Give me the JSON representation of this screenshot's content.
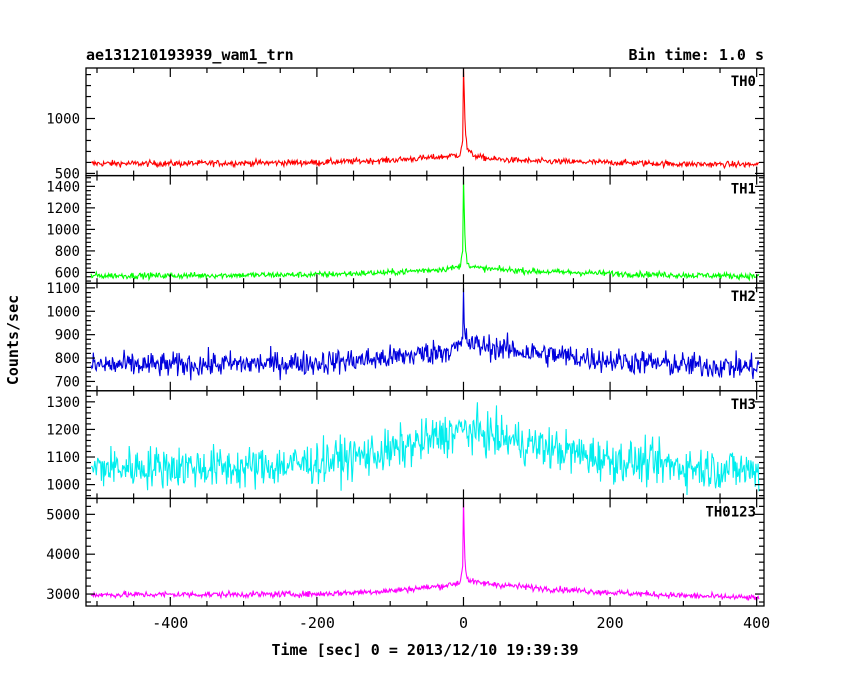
{
  "header": {
    "left": "ae131210193939_wam1_trn",
    "right": "Bin time: 1.0 s"
  },
  "chart_data": {
    "type": "line",
    "title": "ae131210193939_wam1_trn",
    "subtitle": "Bin time: 1.0 s",
    "xlabel": "Time [sec] 0 = 2013/12/10 19:39:39",
    "ylabel": "Counts/sec",
    "xlim": [
      -515,
      410
    ],
    "x_ticks": [
      -400,
      -200,
      0,
      200,
      400
    ],
    "grid": false,
    "panels": [
      {
        "name": "TH0",
        "color": "#ff0000",
        "ylim": [
          480,
          1460
        ],
        "y_ticks": [
          500,
          1000
        ],
        "x_range": [
          -508,
          403
        ],
        "noise": 20,
        "series_x": [
          -508,
          -400,
          -300,
          -200,
          -100,
          -30,
          -5,
          -1,
          0,
          1,
          2,
          3,
          5,
          10,
          20,
          40,
          100,
          200,
          300,
          403
        ],
        "series_y": [
          590,
          590,
          595,
          600,
          620,
          650,
          670,
          800,
          1460,
          1250,
          1000,
          850,
          730,
          680,
          650,
          630,
          610,
          600,
          585,
          580
        ]
      },
      {
        "name": "TH1",
        "color": "#00ff00",
        "ylim": [
          500,
          1500
        ],
        "y_ticks": [
          600,
          800,
          1000,
          1200,
          1400
        ],
        "x_range": [
          -508,
          403
        ],
        "noise": 20,
        "series_x": [
          -508,
          -400,
          -300,
          -200,
          -100,
          -30,
          -5,
          -1,
          0,
          1,
          2,
          3,
          5,
          10,
          20,
          40,
          100,
          200,
          300,
          403
        ],
        "series_y": [
          570,
          570,
          575,
          580,
          600,
          630,
          650,
          800,
          1480,
          1200,
          950,
          800,
          700,
          660,
          640,
          630,
          610,
          590,
          575,
          565
        ]
      },
      {
        "name": "TH2",
        "color": "#0000dd",
        "ylim": [
          660,
          1120
        ],
        "y_ticks": [
          700,
          800,
          900,
          1000,
          1100
        ],
        "x_range": [
          -508,
          403
        ],
        "noise": 38,
        "series_x": [
          -508,
          -400,
          -300,
          -200,
          -100,
          -30,
          -5,
          -1,
          0,
          1,
          3,
          10,
          30,
          100,
          200,
          300,
          403
        ],
        "series_y": [
          770,
          770,
          775,
          780,
          800,
          830,
          845,
          880,
          1100,
          950,
          880,
          860,
          850,
          820,
          790,
          770,
          760
        ]
      },
      {
        "name": "TH3",
        "color": "#00eeee",
        "ylim": [
          950,
          1340
        ],
        "y_ticks": [
          1000,
          1100,
          1200,
          1300
        ],
        "x_range": [
          -508,
          403
        ],
        "noise": 55,
        "series_x": [
          -508,
          -400,
          -300,
          -200,
          -100,
          -50,
          0,
          50,
          100,
          200,
          300,
          403
        ],
        "series_y": [
          1060,
          1065,
          1060,
          1080,
          1120,
          1160,
          1200,
          1170,
          1140,
          1090,
          1065,
          1050
        ]
      },
      {
        "name": "TH0123",
        "color": "#ff00ff",
        "ylim": [
          2700,
          5400
        ],
        "y_ticks": [
          3000,
          4000,
          5000
        ],
        "x_range": [
          -508,
          403
        ],
        "noise": 55,
        "series_x": [
          -508,
          -400,
          -300,
          -200,
          -100,
          -30,
          -5,
          -1,
          0,
          1,
          2,
          3,
          5,
          10,
          20,
          40,
          100,
          200,
          300,
          403
        ],
        "series_y": [
          2980,
          2990,
          2990,
          3000,
          3080,
          3200,
          3280,
          3700,
          5400,
          4500,
          3900,
          3600,
          3400,
          3320,
          3280,
          3250,
          3150,
          3040,
          2960,
          2900
        ]
      }
    ]
  }
}
